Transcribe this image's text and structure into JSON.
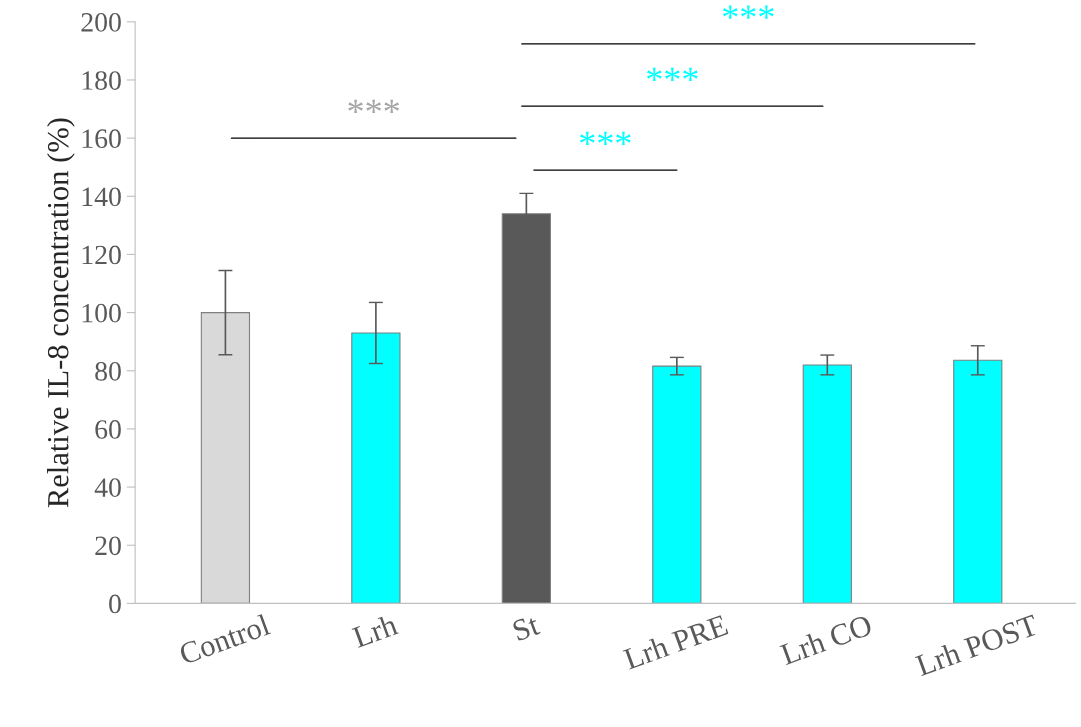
{
  "chart_data": {
    "type": "bar",
    "ylabel": "Relative IL-8 concentration (%)",
    "categories": [
      "Control",
      "Lrh",
      "St",
      "Lrh PRE",
      "Lrh CO",
      "Lrh POST"
    ],
    "values": [
      100,
      93,
      134,
      81.6,
      82,
      83.6
    ],
    "errors": [
      14.5,
      10.5,
      7,
      3,
      3.4,
      5
    ],
    "colors": [
      "#d9d9d9",
      "#00ffff",
      "#595959",
      "#00ffff",
      "#00ffff",
      "#00ffff"
    ],
    "ylim": [
      0,
      200
    ],
    "yticks": [
      0,
      20,
      40,
      60,
      80,
      100,
      120,
      140,
      160,
      180,
      200
    ],
    "grid": false,
    "legend": false,
    "annotations": [
      "***",
      "***",
      "***",
      "***"
    ]
  }
}
